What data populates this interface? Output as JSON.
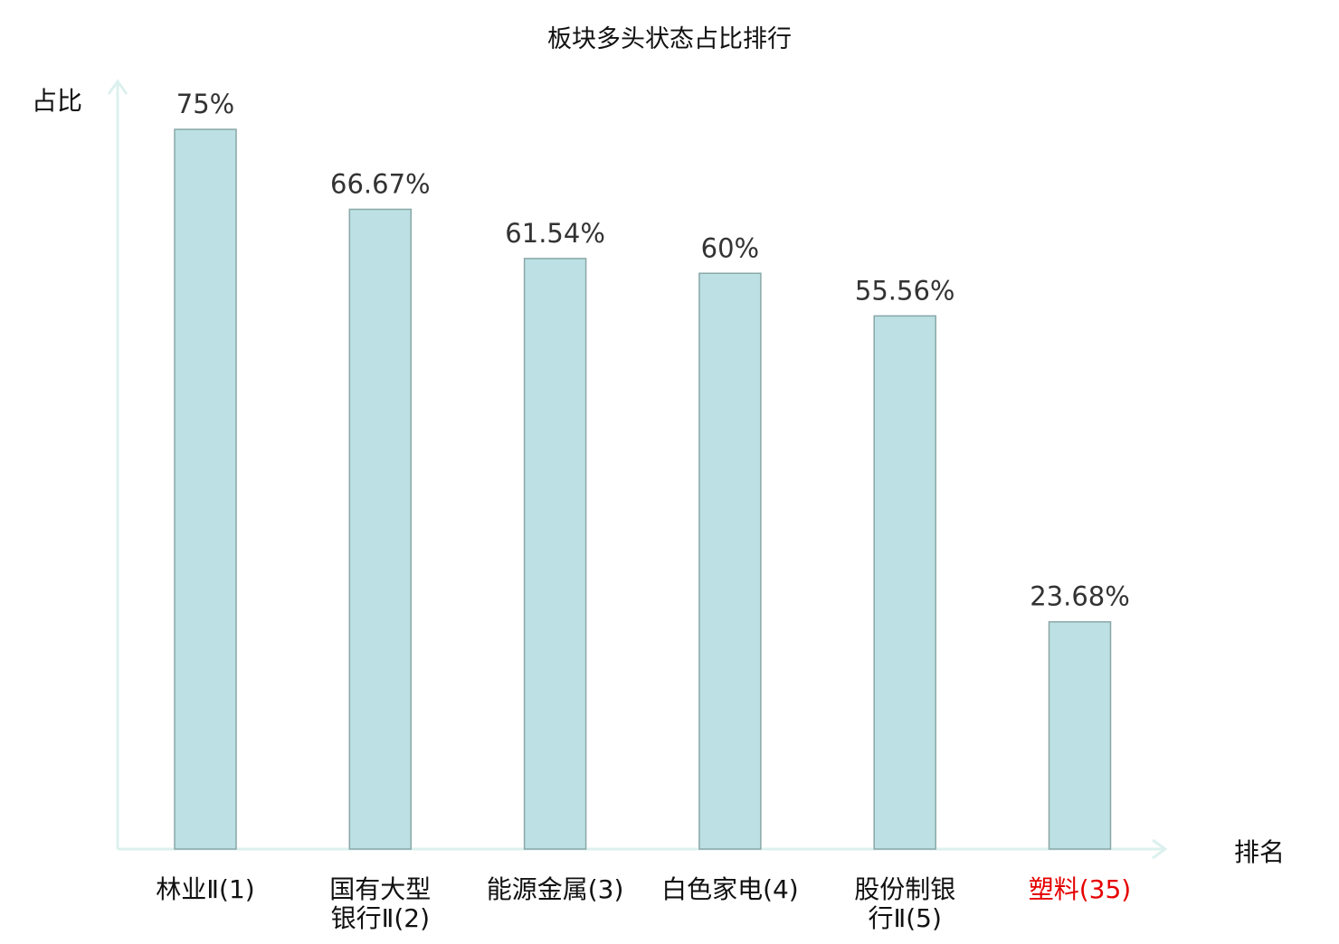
{
  "chart_data": {
    "type": "bar",
    "title": "板块多头状态占比排行",
    "ylabel": "占比",
    "xlabel": "排名",
    "categories": [
      "林业Ⅱ(1)",
      "国有大型银行Ⅱ(2)",
      "能源金属(3)",
      "白色家电(4)",
      "股份制银行Ⅱ(5)",
      "塑料(35)"
    ],
    "values": [
      75,
      66.67,
      61.54,
      60,
      55.56,
      23.68
    ],
    "data_labels": [
      "75%",
      "66.67%",
      "61.54%",
      "60%",
      "55.56%",
      "23.68%"
    ],
    "highlight_index": 5,
    "ylim": [
      0,
      80
    ],
    "grid": false,
    "colors": {
      "bar_fill": "#bce0e3",
      "bar_stroke": "#8aa7a8",
      "axis": "#dcf1ee",
      "text": "#333333",
      "highlight_text": "#e60000"
    }
  }
}
